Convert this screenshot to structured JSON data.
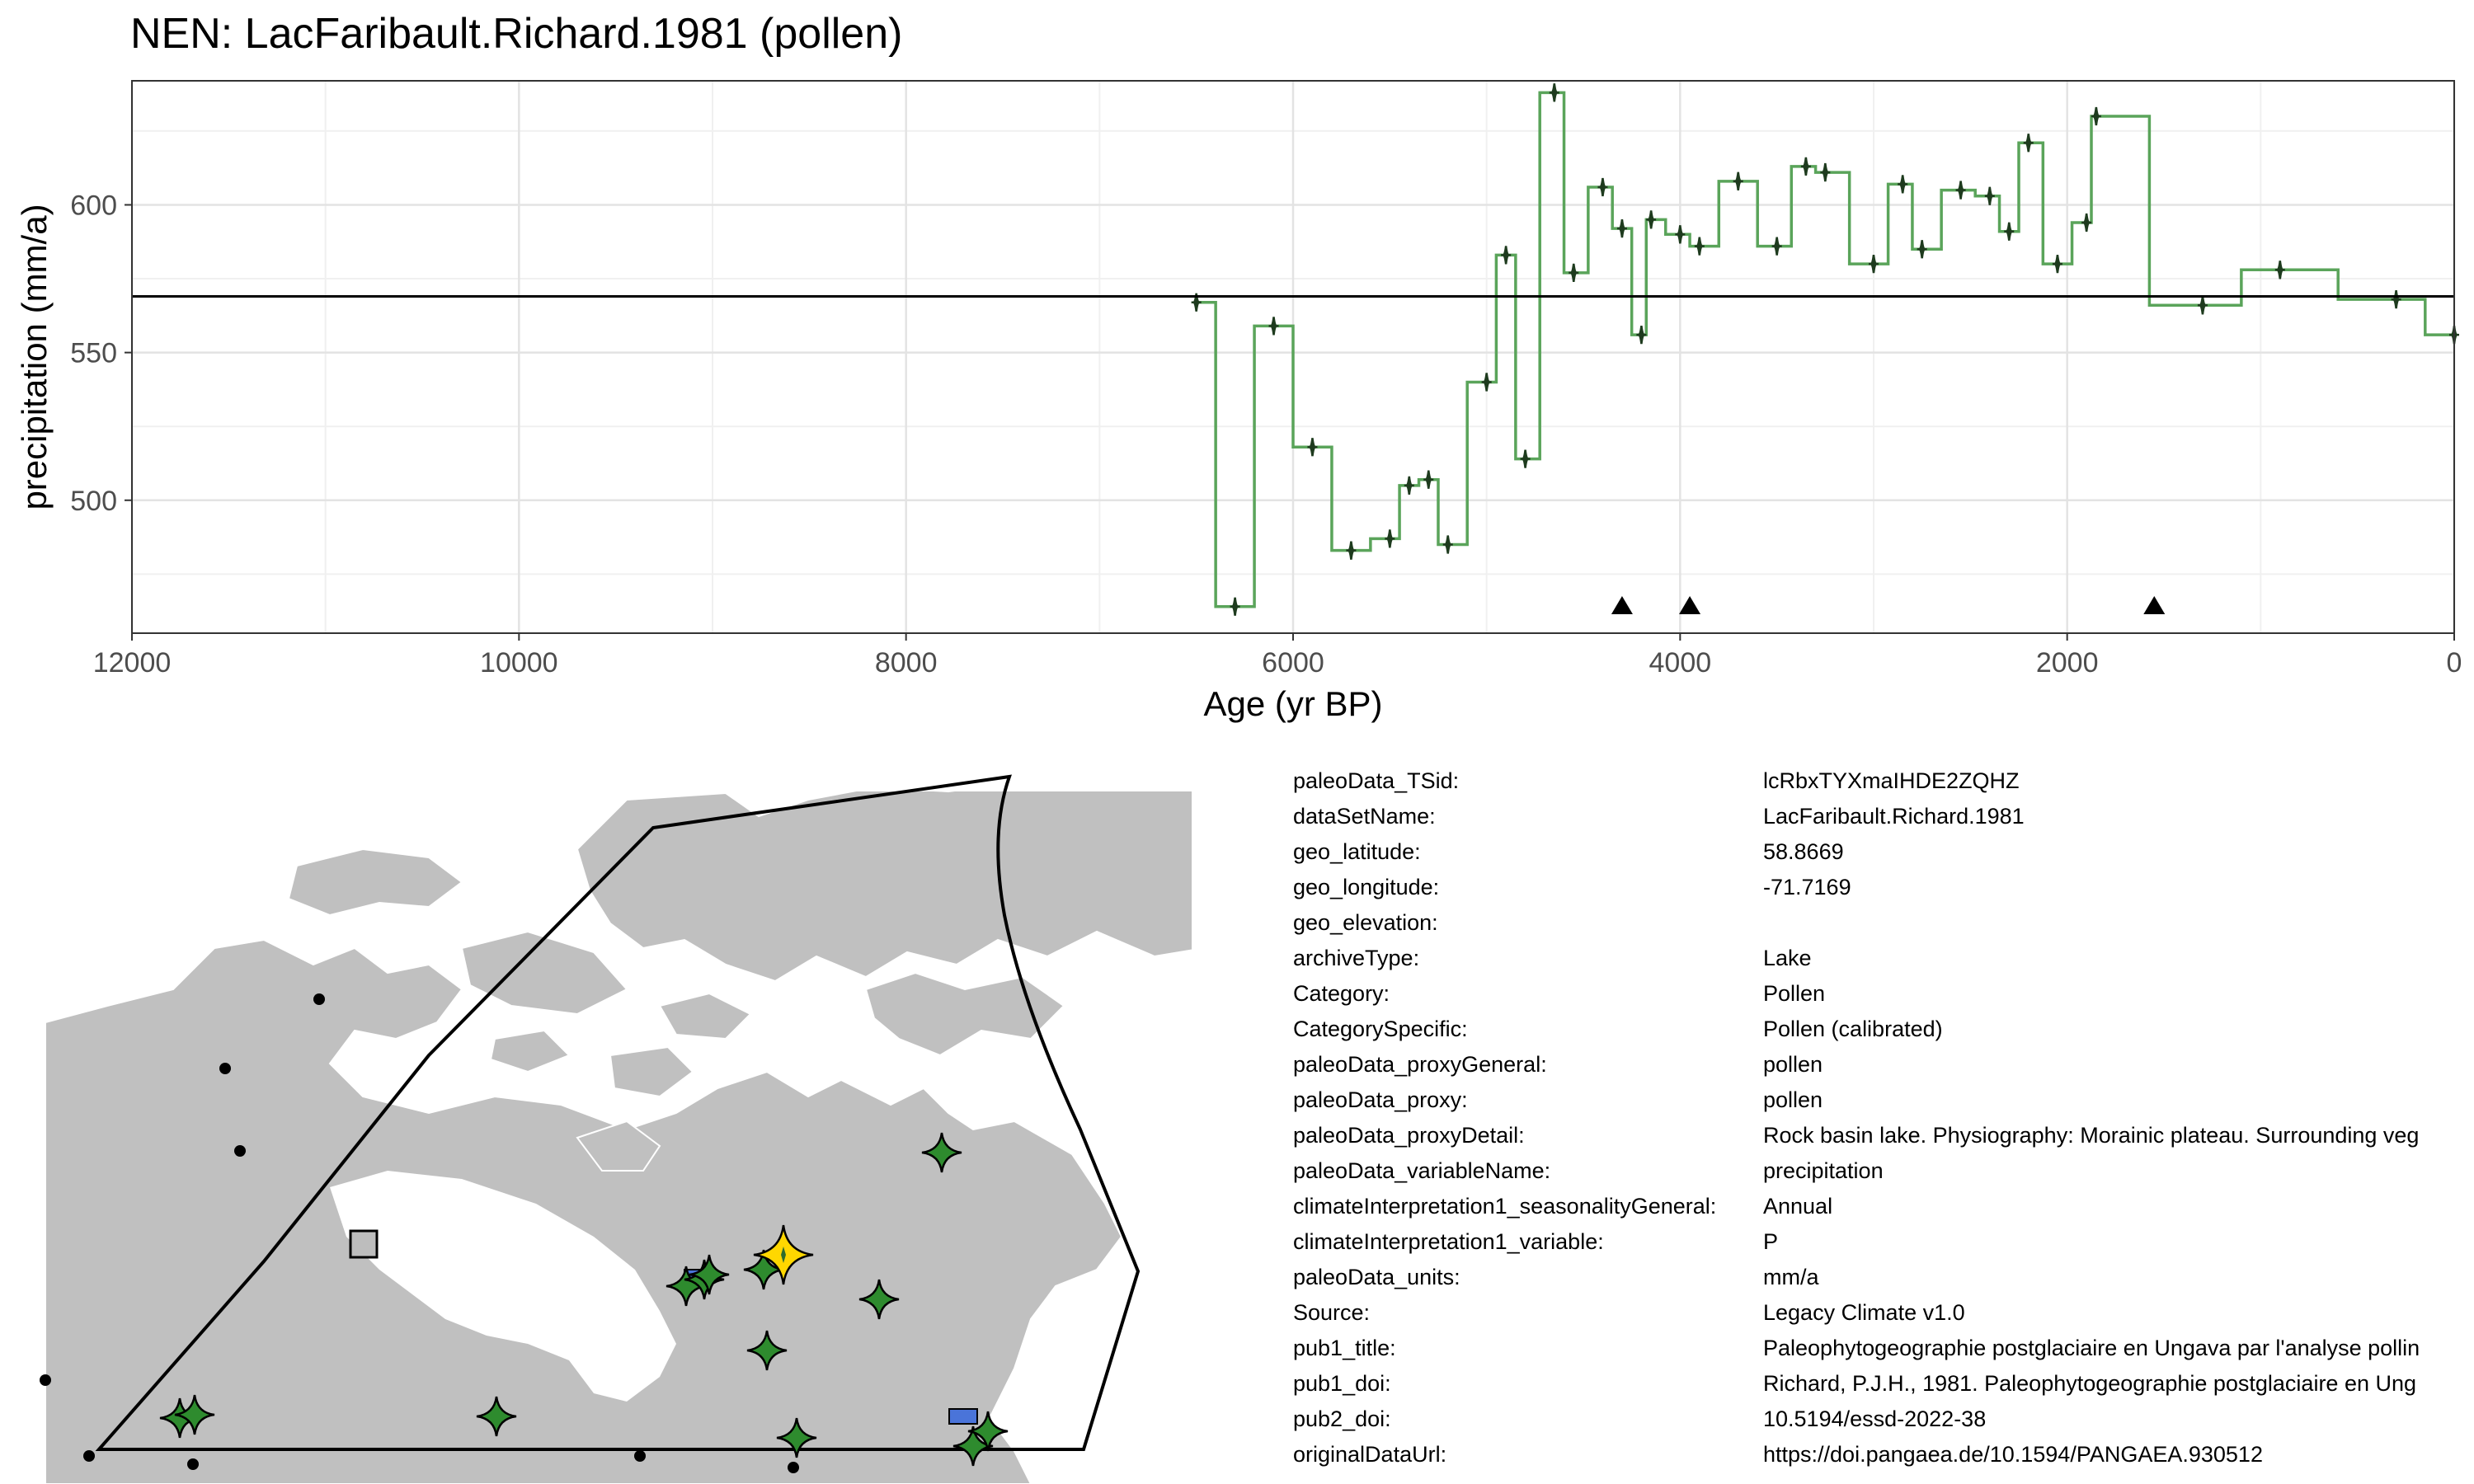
{
  "chart_data": {
    "type": "line",
    "title": "NEN: LacFaribault.Richard.1981 (pollen)",
    "xlabel": "Age (yr BP)",
    "ylabel": "precipitation (mm/a)",
    "xlim": [
      12000,
      0
    ],
    "ylim": [
      455,
      642
    ],
    "x_ticks": [
      12000,
      10000,
      8000,
      6000,
      4000,
      2000,
      0
    ],
    "y_ticks": [
      500,
      550,
      600
    ],
    "grid": true,
    "x_reversed": true,
    "step_style": "horizontal segment centered on each sample, vertical joins at midpoints",
    "mean_line": 569,
    "series": [
      {
        "color": "#5aa45a",
        "marker_color": "#1e3b1e",
        "x": [
          6500,
          6300,
          6100,
          5900,
          5700,
          5500,
          5400,
          5300,
          5200,
          5000,
          4900,
          4800,
          4650,
          4550,
          4400,
          4300,
          4200,
          4150,
          4000,
          3900,
          3700,
          3500,
          3350,
          3250,
          3000,
          2850,
          2750,
          2550,
          2400,
          2300,
          2200,
          2050,
          1900,
          1850,
          1300,
          900,
          300,
          0
        ],
        "y": [
          567,
          464,
          559,
          518,
          483,
          487,
          505,
          507,
          485,
          540,
          583,
          514,
          638,
          577,
          606,
          592,
          556,
          595,
          590,
          586,
          608,
          586,
          613,
          611,
          580,
          607,
          585,
          605,
          603,
          591,
          621,
          580,
          594,
          630,
          566,
          578,
          568,
          556
        ]
      }
    ],
    "triangle_markers_age": [
      4300,
      3950,
      1550
    ]
  },
  "map": {
    "land_color": "#c0c0c0",
    "region_outline_color": "#000000",
    "highlight_site_color": "#ffd700",
    "site_color": "#2e8b2e",
    "other_site_color": "#000000",
    "blue_marker_color": "#4a74d9"
  },
  "metadata": {
    "rows": [
      {
        "key": "paleoData_TSid:",
        "value": "lcRbxTYXmaIHDE2ZQHZ"
      },
      {
        "key": "dataSetName:",
        "value": "LacFaribault.Richard.1981"
      },
      {
        "key": "geo_latitude:",
        "value": "58.8669"
      },
      {
        "key": "geo_longitude:",
        "value": "-71.7169"
      },
      {
        "key": "geo_elevation:",
        "value": ""
      },
      {
        "key": "archiveType:",
        "value": "Lake"
      },
      {
        "key": "Category:",
        "value": "Pollen"
      },
      {
        "key": "CategorySpecific:",
        "value": "Pollen (calibrated)"
      },
      {
        "key": "paleoData_proxyGeneral:",
        "value": "pollen"
      },
      {
        "key": "paleoData_proxy:",
        "value": "pollen"
      },
      {
        "key": "paleoData_proxyDetail:",
        "value": "Rock basin lake. Physiography: Morainic plateau. Surrounding veg"
      },
      {
        "key": "paleoData_variableName:",
        "value": "precipitation"
      },
      {
        "key": "climateInterpretation1_seasonalityGeneral:",
        "value": "Annual"
      },
      {
        "key": "climateInterpretation1_variable:",
        "value": "P"
      },
      {
        "key": "paleoData_units:",
        "value": "mm/a"
      },
      {
        "key": "Source:",
        "value": "Legacy Climate v1.0"
      },
      {
        "key": "pub1_title:",
        "value": "Paleophytogeographie postglaciaire en Ungava par l'analyse pollin"
      },
      {
        "key": "pub1_doi:",
        "value": "Richard, P.J.H., 1981. Paleophytogeographie postglaciaire en Ung"
      },
      {
        "key": "pub2_doi:",
        "value": "10.5194/essd-2022-38"
      },
      {
        "key": "originalDataUrl:",
        "value": "https://doi.pangaea.de/10.1594/PANGAEA.930512"
      }
    ]
  }
}
